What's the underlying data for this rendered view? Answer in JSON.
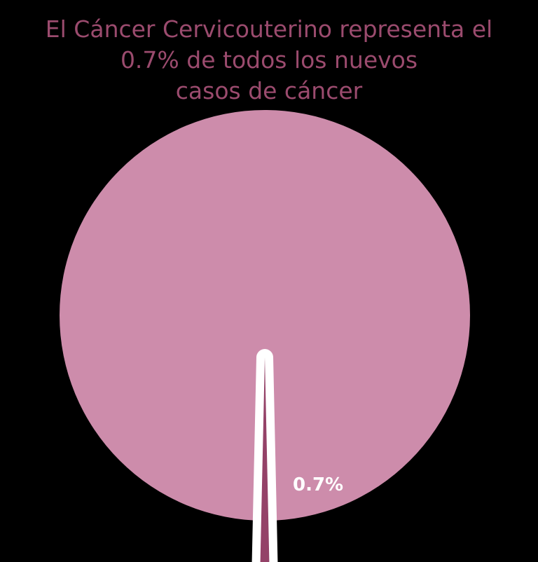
{
  "chart_data": {
    "type": "pie",
    "title_lines": [
      "El Cáncer Cervicouterino representa el",
      "0.7% de todos los  nuevos",
      "casos de cáncer"
    ],
    "slices": [
      {
        "value": 99.3,
        "color": "#cd8cab",
        "label": ""
      },
      {
        "value": 0.7,
        "color": "#944268",
        "label": "0.7%",
        "label_color": "#ffffff",
        "exploded": true
      }
    ],
    "title_color": "#9b4b6e",
    "background_color": "#000000",
    "separator_color": "#ffffff"
  }
}
